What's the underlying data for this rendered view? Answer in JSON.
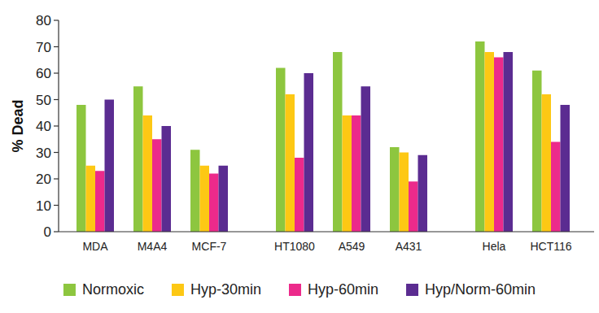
{
  "chart_data": {
    "type": "bar",
    "y_label": "% Dead",
    "categories": [
      "MDA",
      "M4A4",
      "MCF-7",
      null,
      "HT1080",
      "A549",
      "A431",
      null,
      "Hela",
      "HCT116"
    ],
    "series": [
      {
        "name": "Normoxic",
        "color": "#8dc63f",
        "values": [
          48,
          55,
          31,
          null,
          62,
          68,
          32,
          null,
          72,
          61
        ]
      },
      {
        "name": "Hyp-30min",
        "color": "#fdc814",
        "values": [
          25,
          44,
          25,
          null,
          52,
          44,
          30,
          null,
          68,
          52
        ]
      },
      {
        "name": "Hyp-60min",
        "color": "#ec2a8b",
        "values": [
          23,
          35,
          22,
          null,
          28,
          44,
          19,
          null,
          66,
          34
        ]
      },
      {
        "name": "Hyp/Norm-60min",
        "color": "#5b2c91",
        "values": [
          50,
          40,
          25,
          null,
          60,
          55,
          29,
          null,
          68,
          48
        ]
      }
    ],
    "ylim": [
      0,
      80
    ],
    "yticks": [
      0,
      10,
      20,
      30,
      40,
      50,
      60,
      70,
      80
    ],
    "grid": false,
    "legend": "bottom"
  }
}
